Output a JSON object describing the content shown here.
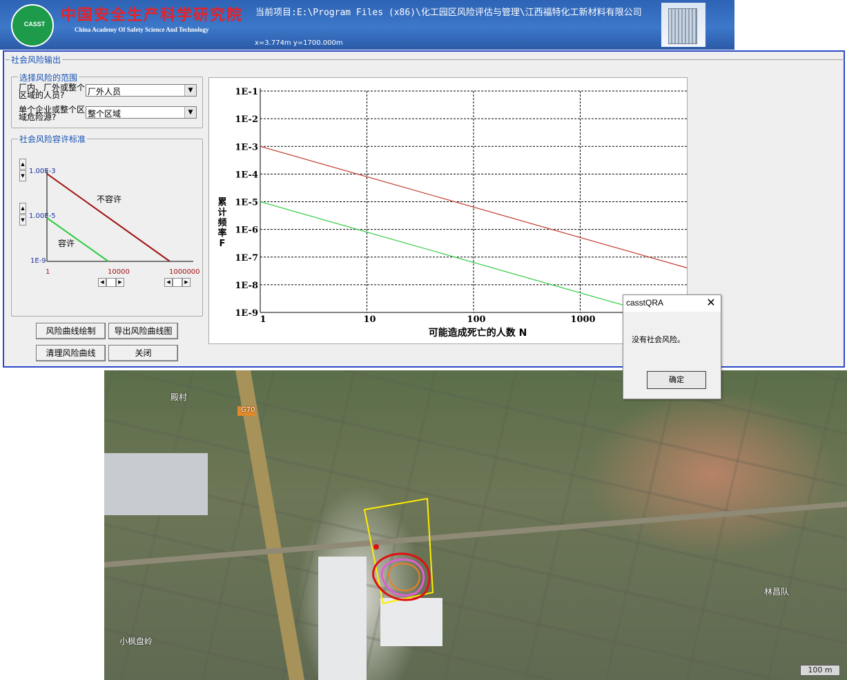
{
  "header": {
    "logo_text": "CASST",
    "org_cn": "中国安全生产科学研究院",
    "org_en": "China Academy Of Safety Science And Technology",
    "project_label": "当前项目:",
    "project_path": "E:\\Program Files (x86)\\化工园区风险评估与管理\\江西福特化工新材料有限公司",
    "coords": "x=3.774m  y=1700.000m"
  },
  "window": {
    "title": "社会风险输出",
    "range_group": {
      "title": "选择风险的范围",
      "q1_label_line1": "厂内、厂外或整个",
      "q1_label_line2": "区域的人员?",
      "q1_value": "厂外人员",
      "q2_label_line1": "单个企业或整个区",
      "q2_label_line2": "域危险源?",
      "q2_value": "整个区域"
    },
    "criteria_group": {
      "title": "社会风险容许标准",
      "upper_value": "1.00E-3",
      "lower_value": "1.00E-5",
      "intolerable_label": "不容许",
      "tolerable_label": "容许",
      "y_min_label": "1E-9",
      "x_start_label": "1",
      "x_mid_label": "10000",
      "x_end_label": "1000000"
    },
    "buttons": {
      "plot": "风险曲线绘制",
      "export": "导出风险曲线图",
      "clear": "清理风险曲线",
      "close": "关闭"
    }
  },
  "chart_data": {
    "type": "line",
    "xlabel": "可能造成死亡的人数 N",
    "ylabel": "累计频率F",
    "x_scale": "log",
    "y_scale": "log",
    "xlim": [
      1,
      10000
    ],
    "ylim": [
      1e-09,
      0.1
    ],
    "x_ticks": [
      "1",
      "10",
      "100",
      "1000"
    ],
    "y_ticks": [
      "1E-1",
      "1E-2",
      "1E-3",
      "1E-4",
      "1E-5",
      "1E-6",
      "1E-7",
      "1E-8",
      "1E-9"
    ],
    "grid": true,
    "series": [
      {
        "color": "#c0392b",
        "x": [
          1,
          10000
        ],
        "y": [
          0.001,
          4.08e-08
        ]
      },
      {
        "color": "#2ecc40",
        "x": [
          1,
          10000
        ],
        "y": [
          1e-05,
          4.08e-10
        ]
      }
    ]
  },
  "dialog": {
    "title": "casstQRA",
    "message": "没有社会风险。",
    "ok": "确定",
    "close_glyph": "✕"
  },
  "map": {
    "road_label": "G70",
    "village_top": "殿村",
    "village_right": "林昌队",
    "village_bottom": "小枫盘岭",
    "scale": "100 m"
  }
}
